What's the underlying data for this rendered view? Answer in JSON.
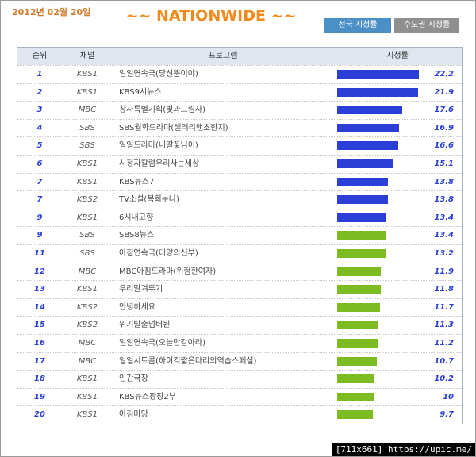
{
  "header": {
    "date": "2012년 02월 20일",
    "title": "~~ NATIONWIDE ~~",
    "tabs": [
      "전국 시청률",
      "수도권 시청률"
    ]
  },
  "table": {
    "columns": [
      "순위",
      "채널",
      "프로그램",
      "시청률"
    ],
    "bar_colors": {
      "blue": "#2b3fd6",
      "green": "#7dbb22"
    },
    "rows": [
      {
        "rank": "1",
        "channel": "KBS1",
        "program": "일일연속극(당신뿐이야)",
        "rating": 22.2,
        "color": "blue"
      },
      {
        "rank": "2",
        "channel": "KBS1",
        "program": "KBS9시뉴스",
        "rating": 21.9,
        "color": "blue"
      },
      {
        "rank": "3",
        "channel": "MBC",
        "program": "창사특별기획(빛과그림자)",
        "rating": 17.6,
        "color": "blue"
      },
      {
        "rank": "4",
        "channel": "SBS",
        "program": "SBS월화드라마(샐러리맨초한지)",
        "rating": 16.9,
        "color": "blue"
      },
      {
        "rank": "5",
        "channel": "SBS",
        "program": "일일드라마(내딸꽃님이)",
        "rating": 16.6,
        "color": "blue"
      },
      {
        "rank": "6",
        "channel": "KBS1",
        "program": "시청자칼럼우리사는세상",
        "rating": 15.1,
        "color": "blue"
      },
      {
        "rank": "7",
        "channel": "KBS1",
        "program": "KBS뉴스7",
        "rating": 13.8,
        "color": "blue"
      },
      {
        "rank": "7",
        "channel": "KBS2",
        "program": "TV소설(복희누나)",
        "rating": 13.8,
        "color": "blue"
      },
      {
        "rank": "9",
        "channel": "KBS1",
        "program": "6시내고향",
        "rating": 13.4,
        "color": "blue"
      },
      {
        "rank": "9",
        "channel": "SBS",
        "program": "SBS8뉴스",
        "rating": 13.4,
        "color": "green"
      },
      {
        "rank": "11",
        "channel": "SBS",
        "program": "아침연속극(태양의신부)",
        "rating": 13.2,
        "color": "green"
      },
      {
        "rank": "12",
        "channel": "MBC",
        "program": "MBC아침드라마(위험한여자)",
        "rating": 11.9,
        "color": "green"
      },
      {
        "rank": "13",
        "channel": "KBS1",
        "program": "우리말겨루기",
        "rating": 11.8,
        "color": "green"
      },
      {
        "rank": "14",
        "channel": "KBS2",
        "program": "안녕하세요",
        "rating": 11.7,
        "color": "green"
      },
      {
        "rank": "15",
        "channel": "KBS2",
        "program": "위기탈출넘버원",
        "rating": 11.3,
        "color": "green"
      },
      {
        "rank": "16",
        "channel": "MBC",
        "program": "일일연속극(오늘만같아라)",
        "rating": 11.2,
        "color": "green"
      },
      {
        "rank": "17",
        "channel": "MBC",
        "program": "일일시트콤(하이킥짧은다리의역습스페셜)",
        "rating": 10.7,
        "color": "green"
      },
      {
        "rank": "18",
        "channel": "KBS1",
        "program": "인간극장",
        "rating": 10.2,
        "color": "green"
      },
      {
        "rank": "19",
        "channel": "KBS1",
        "program": "KBS뉴스광장2부",
        "rating": 10,
        "color": "green"
      },
      {
        "rank": "20",
        "channel": "KBS1",
        "program": "아침마당",
        "rating": 9.7,
        "color": "green"
      }
    ]
  },
  "watermark": "[711x661] https://upic.me/"
}
